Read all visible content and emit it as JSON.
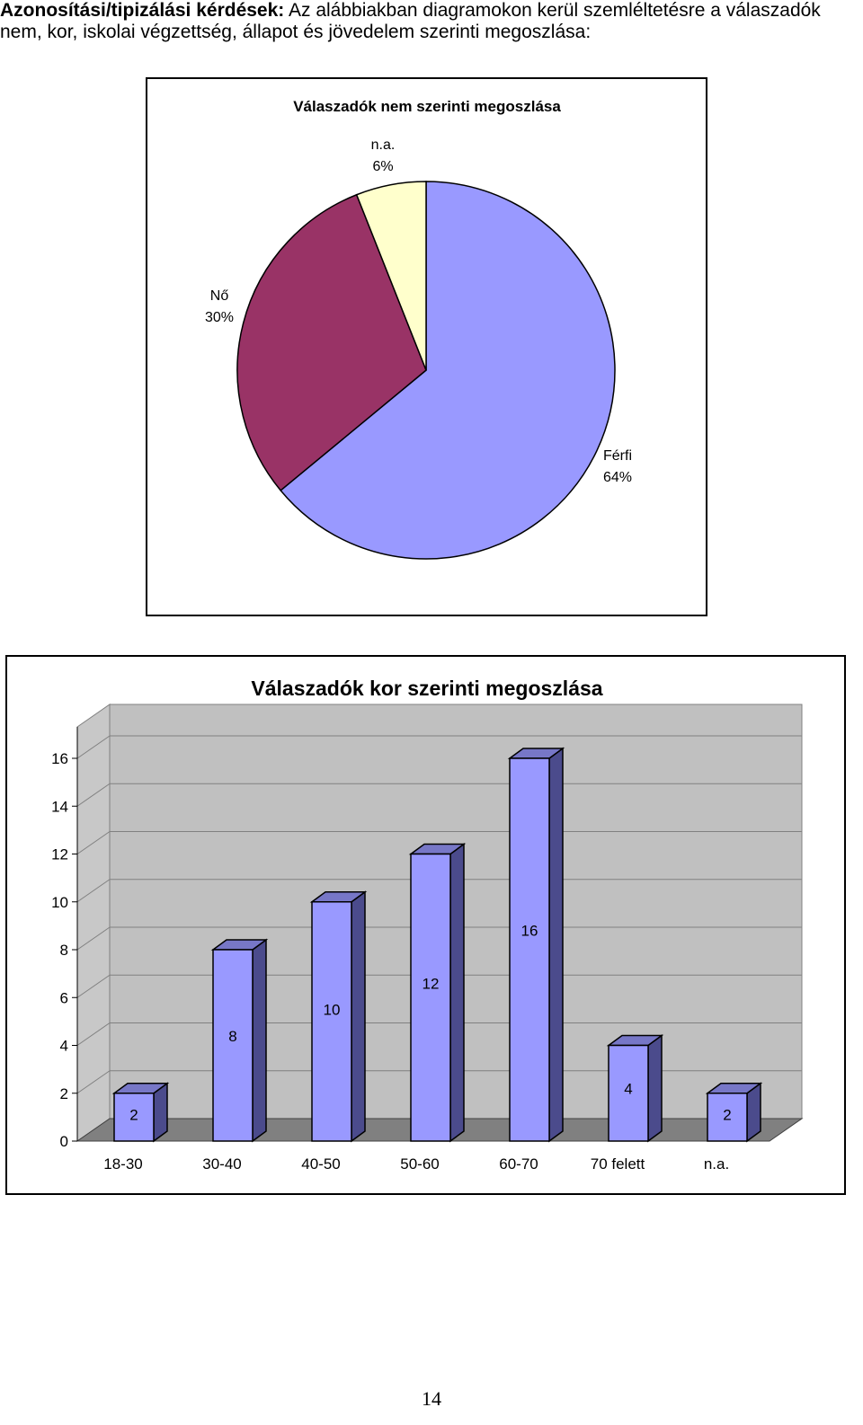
{
  "intro": {
    "bold_label": "Azonosítási/tipizálási kérdések:",
    "text": " Az alábbiakban diagramokon kerül szemléltetésre a válaszadók nem, kor, iskolai végzettség, állapot és jövedelem szerinti megoszlása:"
  },
  "chart_data": [
    {
      "type": "pie",
      "title": "Válaszadók nem szerinti megoszlása",
      "slices": [
        {
          "label": "Férfi",
          "value": 64,
          "display": "64%",
          "color": "#9999FF"
        },
        {
          "label": "Nő",
          "value": 30,
          "display": "30%",
          "color": "#993366"
        },
        {
          "label": "n.a.",
          "value": 6,
          "display": "6%",
          "color": "#FFFFCC"
        }
      ]
    },
    {
      "type": "bar",
      "title": "Válaszadók kor szerinti megoszlása",
      "categories": [
        "18-30",
        "30-40",
        "40-50",
        "50-60",
        "60-70",
        "70 felett",
        "n.a."
      ],
      "values": [
        2,
        8,
        10,
        12,
        16,
        4,
        2
      ],
      "ylim": [
        0,
        16
      ],
      "yticks": [
        0,
        2,
        4,
        6,
        8,
        10,
        12,
        14,
        16
      ],
      "grid": true,
      "bar_color": "#9999FF",
      "bar_side_color": "#4B4B8C",
      "wall_color": "#C0C0C0"
    }
  ],
  "page": {
    "number": "14"
  }
}
